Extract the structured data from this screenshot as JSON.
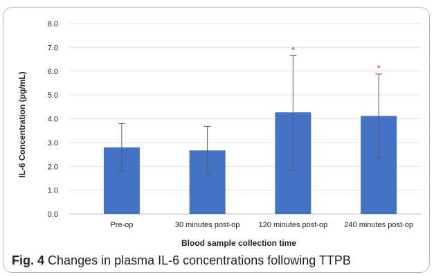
{
  "chart_data": {
    "type": "bar",
    "categories": [
      "Pre-op",
      "30 minutes post-op",
      "120 minutes post-op",
      "240 minutes post-op"
    ],
    "values": [
      2.8,
      2.67,
      4.27,
      4.12
    ],
    "error_upper": [
      3.8,
      3.68,
      6.65,
      5.88
    ],
    "error_lower": [
      1.8,
      1.67,
      1.85,
      2.35
    ],
    "significant": [
      false,
      false,
      true,
      true
    ],
    "significance_marker": "*",
    "xlabel": "Blood sample collection time",
    "ylabel": "IL-6 Concentration (pg/mL)",
    "ylim": [
      0,
      8
    ],
    "yticks": [
      "0.0",
      "1.0",
      "2.0",
      "3.0",
      "4.0",
      "5.0",
      "6.0",
      "7.0",
      "8.0"
    ],
    "grid": true,
    "bar_color": "#4472c4",
    "error_bar_color": "#595959",
    "marker_color": "#e02020"
  },
  "caption": {
    "label": "Fig. 4",
    "text": "Changes in plasma IL-6 concentrations following TTPB"
  }
}
